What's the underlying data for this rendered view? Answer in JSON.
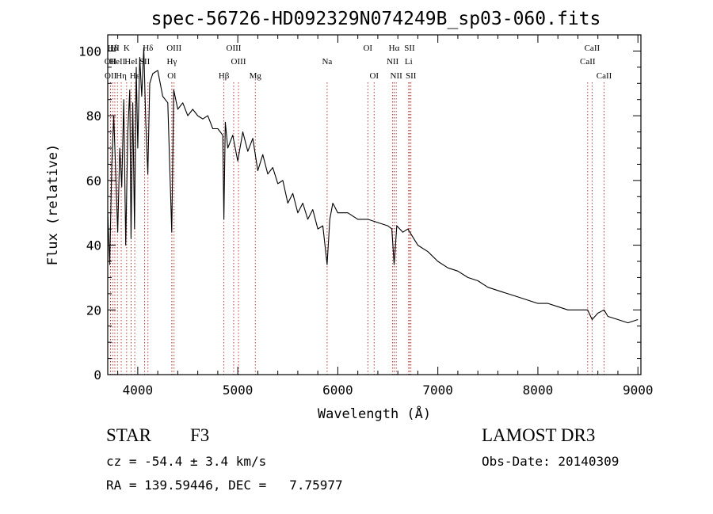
{
  "chart_data": {
    "type": "line",
    "title": "spec-56726-HD092329N074249B_sp03-060.fits",
    "xlabel": "Wavelength (Å)",
    "ylabel": "Flux (relative)",
    "xlim": [
      3700,
      9030
    ],
    "ylim": [
      0,
      105
    ],
    "xticks": [
      4000,
      5000,
      6000,
      7000,
      8000,
      9000
    ],
    "xtick_labels": [
      "4000",
      "5000",
      "6000",
      "7000",
      "8000",
      "9000"
    ],
    "yticks": [
      0,
      20,
      40,
      60,
      80,
      100
    ],
    "ytick_labels": [
      "0",
      "20",
      "40",
      "60",
      "80",
      "100"
    ],
    "series": [
      {
        "name": "flux",
        "color": "#000000",
        "x": [
          3700,
          3720,
          3740,
          3760,
          3780,
          3800,
          3820,
          3840,
          3860,
          3880,
          3900,
          3920,
          3933,
          3950,
          3968,
          3985,
          4000,
          4020,
          4040,
          4060,
          4080,
          4101,
          4120,
          4150,
          4200,
          4250,
          4300,
          4340,
          4360,
          4400,
          4450,
          4500,
          4550,
          4600,
          4650,
          4700,
          4750,
          4800,
          4850,
          4861,
          4875,
          4900,
          4950,
          5000,
          5050,
          5100,
          5150,
          5200,
          5250,
          5300,
          5350,
          5400,
          5450,
          5500,
          5550,
          5600,
          5650,
          5700,
          5750,
          5800,
          5850,
          5893,
          5920,
          5950,
          6000,
          6100,
          6200,
          6300,
          6400,
          6500,
          6540,
          6563,
          6590,
          6650,
          6700,
          6800,
          6900,
          7000,
          7100,
          7200,
          7300,
          7400,
          7500,
          7600,
          7700,
          7800,
          7900,
          8000,
          8100,
          8200,
          8300,
          8400,
          8498,
          8542,
          8600,
          8662,
          8700,
          8800,
          8900,
          9000
        ],
        "y": [
          50,
          34,
          65,
          80,
          62,
          44,
          70,
          58,
          85,
          40,
          75,
          88,
          42,
          84,
          45,
          95,
          70,
          98,
          86,
          101,
          78,
          62,
          90,
          93,
          94,
          86,
          84,
          44,
          88,
          82,
          84,
          80,
          82,
          80,
          79,
          80,
          76,
          76,
          74,
          48,
          78,
          70,
          74,
          66,
          75,
          69,
          73,
          63,
          68,
          62,
          64,
          59,
          60,
          53,
          56,
          50,
          53,
          48,
          51,
          45,
          46,
          34,
          48,
          53,
          50,
          50,
          48,
          48,
          47,
          46,
          45,
          34,
          46,
          44,
          45,
          40,
          38,
          35,
          33,
          32,
          30,
          29,
          27,
          26,
          25,
          24,
          23,
          22,
          22,
          21,
          20,
          20,
          20,
          17,
          19,
          20,
          18,
          17,
          16,
          17
        ]
      }
    ],
    "line_markers": [
      {
        "label": "Hδ",
        "wave": 3750,
        "row": 0
      },
      {
        "label": "OII",
        "wave": 3727,
        "row": 1
      },
      {
        "label": "OII",
        "wave": 3729,
        "row": 2
      },
      {
        "label": "HI",
        "wave": 3771,
        "row": 0
      },
      {
        "label": "HeII",
        "wave": 3797,
        "row": 1
      },
      {
        "label": "Hη",
        "wave": 3835,
        "row": 2
      },
      {
        "label": "K",
        "wave": 3889,
        "row": 0
      },
      {
        "label": "HeI",
        "wave": 3934,
        "row": 1
      },
      {
        "label": "Hε",
        "wave": 3970,
        "row": 2
      },
      {
        "label": "Hδ",
        "wave": 4102,
        "row": 0
      },
      {
        "label": "SII",
        "wave": 4069,
        "row": 1
      },
      {
        "label": "OIII",
        "wave": 4363,
        "row": 0
      },
      {
        "label": "Hγ",
        "wave": 4341,
        "row": 1
      },
      {
        "label": "Ol",
        "wave": 4340,
        "row": 2
      },
      {
        "label": "Hβ",
        "wave": 4861,
        "row": 3
      },
      {
        "label": "OIII",
        "wave": 4959,
        "row": 0
      },
      {
        "label": "OIII",
        "wave": 5007,
        "row": 1
      },
      {
        "label": "Mg",
        "wave": 5175,
        "row": 3
      },
      {
        "label": "Na",
        "wave": 5893,
        "row": 1
      },
      {
        "label": "OI",
        "wave": 6300,
        "row": 0
      },
      {
        "label": "OI",
        "wave": 6363,
        "row": 2
      },
      {
        "label": "Hα",
        "wave": 6563,
        "row": 0
      },
      {
        "label": "NII",
        "wave": 6548,
        "row": 1
      },
      {
        "label": "NII",
        "wave": 6584,
        "row": 2
      },
      {
        "label": "SII",
        "wave": 6717,
        "row": 0
      },
      {
        "label": "Li",
        "wave": 6708,
        "row": 1
      },
      {
        "label": "SII",
        "wave": 6731,
        "row": 2
      },
      {
        "label": "CaII",
        "wave": 8542,
        "row": 0
      },
      {
        "label": "CaII",
        "wave": 8498,
        "row": 1
      },
      {
        "label": "CaII",
        "wave": 8662,
        "row": 2
      }
    ],
    "marker_color": "#b22222"
  },
  "info": {
    "object_class": "STAR",
    "subclass": "F3",
    "survey": "LAMOST DR3",
    "cz": "cz = -54.4 ± 3.4 km/s",
    "obs_date": "Obs-Date: 20140309",
    "coords": "RA = 139.59446, DEC =   7.75977"
  }
}
